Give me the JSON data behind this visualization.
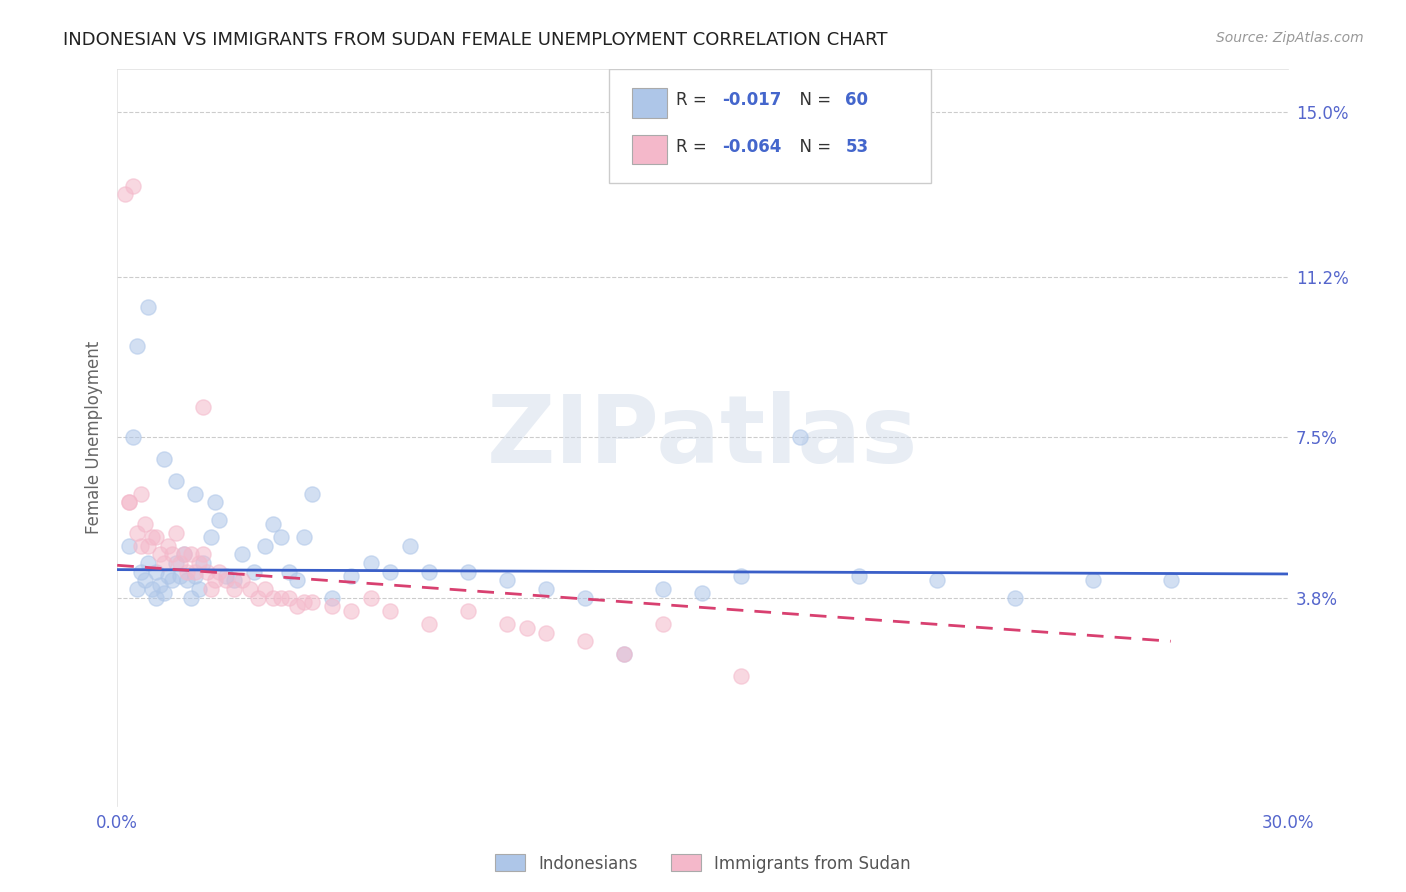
{
  "title": "INDONESIAN VS IMMIGRANTS FROM SUDAN FEMALE UNEMPLOYMENT CORRELATION CHART",
  "source": "Source: ZipAtlas.com",
  "ylabel": "Female Unemployment",
  "xlim": [
    0.0,
    0.3
  ],
  "ylim": [
    -0.01,
    0.16
  ],
  "xticks": [
    0.0,
    0.05,
    0.1,
    0.15,
    0.2,
    0.25,
    0.3
  ],
  "xticklabels": [
    "0.0%",
    "",
    "",
    "",
    "",
    "",
    "30.0%"
  ],
  "ytick_positions": [
    0.038,
    0.075,
    0.112,
    0.15
  ],
  "ytick_labels": [
    "3.8%",
    "7.5%",
    "11.2%",
    "15.0%"
  ],
  "legend1_r": "R = ",
  "legend1_rval": "-0.017",
  "legend1_n": "   N = ",
  "legend1_nval": "60",
  "legend2_r": "R = ",
  "legend2_rval": "-0.064",
  "legend2_n": "   N = ",
  "legend2_nval": "53",
  "legend1_color": "#aec6e8",
  "legend2_color": "#f4b8ca",
  "trendline1_color": "#3a5fc8",
  "trendline2_color": "#d84070",
  "watermark": "ZIPatlas",
  "indonesian_x": [
    0.003,
    0.004,
    0.005,
    0.006,
    0.007,
    0.008,
    0.009,
    0.01,
    0.01,
    0.011,
    0.012,
    0.013,
    0.014,
    0.015,
    0.016,
    0.017,
    0.018,
    0.019,
    0.02,
    0.021,
    0.022,
    0.024,
    0.026,
    0.028,
    0.03,
    0.032,
    0.035,
    0.038,
    0.04,
    0.042,
    0.044,
    0.046,
    0.048,
    0.05,
    0.055,
    0.06,
    0.065,
    0.07,
    0.075,
    0.08,
    0.09,
    0.1,
    0.11,
    0.12,
    0.13,
    0.14,
    0.15,
    0.16,
    0.175,
    0.19,
    0.21,
    0.23,
    0.25,
    0.27,
    0.005,
    0.008,
    0.012,
    0.015,
    0.02,
    0.025
  ],
  "indonesian_y": [
    0.05,
    0.075,
    0.04,
    0.044,
    0.042,
    0.046,
    0.04,
    0.044,
    0.038,
    0.041,
    0.039,
    0.043,
    0.042,
    0.046,
    0.043,
    0.048,
    0.042,
    0.038,
    0.043,
    0.04,
    0.046,
    0.052,
    0.056,
    0.043,
    0.042,
    0.048,
    0.044,
    0.05,
    0.055,
    0.052,
    0.044,
    0.042,
    0.052,
    0.062,
    0.038,
    0.043,
    0.046,
    0.044,
    0.05,
    0.044,
    0.044,
    0.042,
    0.04,
    0.038,
    0.025,
    0.04,
    0.039,
    0.043,
    0.075,
    0.043,
    0.042,
    0.038,
    0.042,
    0.042,
    0.096,
    0.105,
    0.07,
    0.065,
    0.062,
    0.06
  ],
  "sudan_x": [
    0.002,
    0.003,
    0.004,
    0.005,
    0.006,
    0.007,
    0.008,
    0.009,
    0.01,
    0.011,
    0.012,
    0.013,
    0.014,
    0.015,
    0.016,
    0.017,
    0.018,
    0.019,
    0.02,
    0.021,
    0.022,
    0.023,
    0.024,
    0.025,
    0.026,
    0.028,
    0.03,
    0.032,
    0.034,
    0.036,
    0.038,
    0.04,
    0.042,
    0.044,
    0.046,
    0.048,
    0.05,
    0.055,
    0.06,
    0.065,
    0.07,
    0.08,
    0.09,
    0.1,
    0.11,
    0.12,
    0.13,
    0.14,
    0.16,
    0.003,
    0.006,
    0.022,
    0.105
  ],
  "sudan_y": [
    0.131,
    0.06,
    0.133,
    0.053,
    0.05,
    0.055,
    0.05,
    0.052,
    0.052,
    0.048,
    0.046,
    0.05,
    0.048,
    0.053,
    0.046,
    0.048,
    0.044,
    0.048,
    0.044,
    0.046,
    0.048,
    0.044,
    0.04,
    0.042,
    0.044,
    0.042,
    0.04,
    0.042,
    0.04,
    0.038,
    0.04,
    0.038,
    0.038,
    0.038,
    0.036,
    0.037,
    0.037,
    0.036,
    0.035,
    0.038,
    0.035,
    0.032,
    0.035,
    0.032,
    0.03,
    0.028,
    0.025,
    0.032,
    0.02,
    0.06,
    0.062,
    0.082,
    0.031
  ],
  "trendline1_x": [
    0.0,
    0.3
  ],
  "trendline1_y": [
    0.0445,
    0.0435
  ],
  "trendline2_x": [
    0.0,
    0.27
  ],
  "trendline2_y": [
    0.0455,
    0.028
  ],
  "background_color": "#ffffff",
  "grid_color": "#cccccc",
  "dot_size": 120,
  "dot_alpha": 0.55,
  "tick_color": "#5566cc"
}
